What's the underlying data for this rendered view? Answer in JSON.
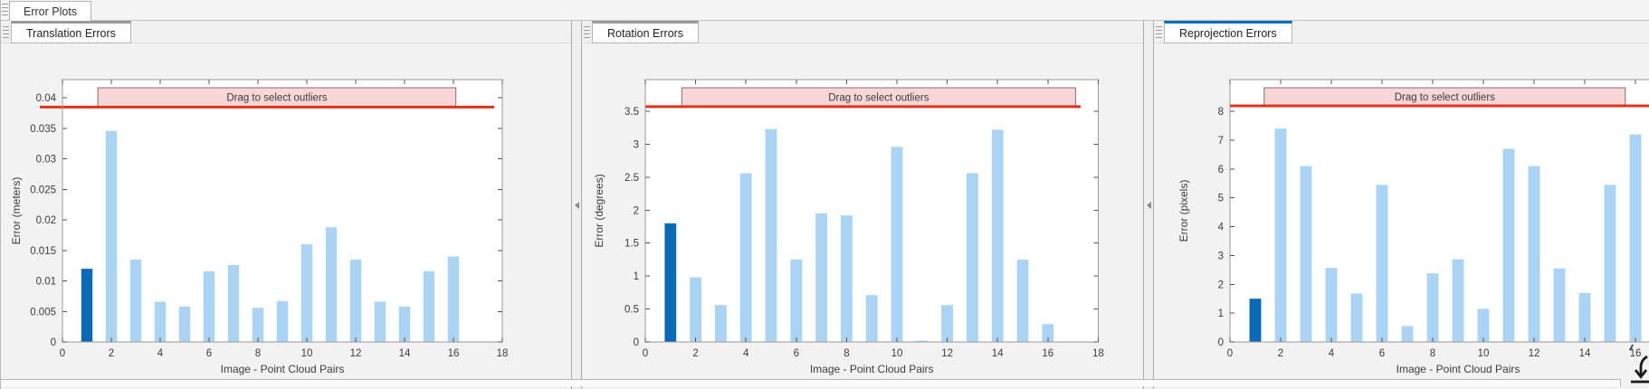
{
  "window": {
    "title_tab": "Error Plots"
  },
  "panels": [
    {
      "tab": "Translation Errors",
      "active": false
    },
    {
      "tab": "Rotation Errors",
      "active": false
    },
    {
      "tab": "Reprojection Errors",
      "active": true
    }
  ],
  "colors": {
    "bar_light": "#A9D4F5",
    "bar_selected": "#0B6AB8",
    "threshold_red": "#E2321D",
    "band_fill": "#F7D6D7",
    "band_border": "#8D6B6D",
    "active_tab_accent": "#0B6CB8",
    "inactive_tab_accent": "#9B9B9B",
    "axis_box": "#9A9A9A",
    "tick_text": "#3C3C3C"
  },
  "icons": {
    "panel_grip": "grip-icon",
    "splitter_arrow": "collapse-arrow-icon",
    "export_arrow": "download-arrow-icon"
  },
  "chart_data": [
    {
      "type": "bar",
      "panel": "Translation Errors",
      "xlabel": "Image - Point Cloud Pairs",
      "ylabel": "Error (meters)",
      "categories": [
        1,
        2,
        3,
        4,
        5,
        6,
        7,
        8,
        9,
        10,
        11,
        12,
        13,
        14,
        15,
        16
      ],
      "values": [
        0.012,
        0.0346,
        0.0135,
        0.0066,
        0.0058,
        0.0116,
        0.0126,
        0.0056,
        0.0067,
        0.016,
        0.0188,
        0.0135,
        0.0066,
        0.0058,
        0.0116,
        0.014
      ],
      "selected_bar_index": 0,
      "xlim": [
        0,
        18
      ],
      "ylim": [
        0,
        0.043
      ],
      "xticks": [
        0,
        2,
        4,
        6,
        8,
        10,
        12,
        14,
        16,
        18
      ],
      "yticks": [
        0,
        0.005,
        0.01,
        0.015,
        0.02,
        0.025,
        0.03,
        0.035,
        0.04
      ],
      "ytick_labels": [
        "0",
        "0.005",
        "0.01",
        "0.015",
        "0.02",
        "0.025",
        "0.03",
        "0.035",
        "0.04"
      ],
      "threshold_line": 0.0385,
      "outlier_band": {
        "label": "Drag to select outliers",
        "x_start": 1.45,
        "x_end": 16.1
      }
    },
    {
      "type": "bar",
      "panel": "Rotation Errors",
      "xlabel": "Image - Point Cloud Pairs",
      "ylabel": "Error (degrees)",
      "categories": [
        1,
        2,
        3,
        4,
        5,
        6,
        7,
        8,
        9,
        10,
        11,
        12,
        13,
        14,
        15,
        16
      ],
      "values": [
        1.8,
        0.98,
        0.56,
        2.56,
        3.23,
        1.25,
        1.95,
        1.92,
        0.71,
        2.96,
        0.02,
        0.56,
        2.56,
        3.22,
        1.25,
        0.27
      ],
      "selected_bar_index": 0,
      "xlim": [
        0,
        18
      ],
      "ylim": [
        0,
        3.98
      ],
      "xticks": [
        0,
        2,
        4,
        6,
        8,
        10,
        12,
        14,
        16,
        18
      ],
      "yticks": [
        0,
        0.5,
        1,
        1.5,
        2,
        2.5,
        3,
        3.5
      ],
      "ytick_labels": [
        "0",
        "0.5",
        "1",
        "1.5",
        "2",
        "2.5",
        "3",
        "3.5"
      ],
      "threshold_line": 3.57,
      "outlier_band": {
        "label": "Drag to select outliers",
        "x_start": 1.45,
        "x_end": 17.1
      }
    },
    {
      "type": "bar",
      "panel": "Reprojection Errors",
      "xlabel": "Image - Point Cloud Pairs",
      "ylabel": "Error (pixels)",
      "categories": [
        1,
        2,
        3,
        4,
        5,
        6,
        7,
        8,
        9,
        10,
        11,
        12,
        13,
        14,
        15,
        16
      ],
      "values": [
        1.5,
        7.4,
        6.1,
        2.57,
        1.68,
        5.45,
        0.55,
        2.38,
        2.87,
        1.15,
        6.7,
        6.1,
        2.55,
        1.7,
        5.45,
        7.2
      ],
      "selected_bar_index": 0,
      "xlim": [
        0,
        18
      ],
      "ylim": [
        0,
        9.1
      ],
      "xticks": [
        0,
        2,
        4,
        6,
        8,
        10,
        12,
        14,
        16,
        18
      ],
      "yticks": [
        0,
        1,
        2,
        3,
        4,
        5,
        6,
        7,
        8
      ],
      "ytick_labels": [
        "0",
        "1",
        "2",
        "3",
        "4",
        "5",
        "6",
        "7",
        "8"
      ],
      "threshold_line": 8.19,
      "outlier_band": {
        "label": "Drag to select outliers",
        "x_start": 1.35,
        "x_end": 15.6
      }
    }
  ]
}
